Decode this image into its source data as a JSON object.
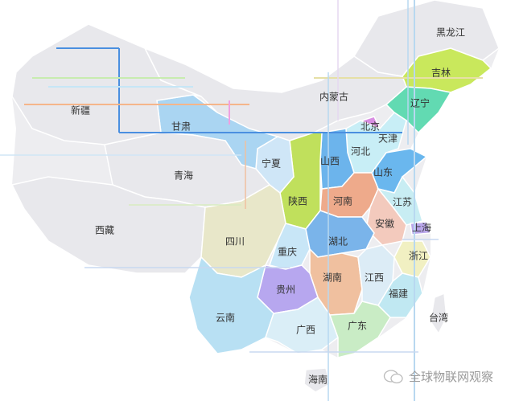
{
  "provinces": [
    {
      "name": "黑龙江",
      "color": "#e8e8ec"
    },
    {
      "name": "吉林",
      "color": "#c9e85c"
    },
    {
      "name": "辽宁",
      "color": "#62dab2"
    },
    {
      "name": "内蒙古",
      "color": "#e8e8ec"
    },
    {
      "name": "北京",
      "color": "#d88ee2"
    },
    {
      "name": "天津",
      "color": "#3a8ee6"
    },
    {
      "name": "河北",
      "color": "#c8eef6"
    },
    {
      "name": "山西",
      "color": "#6cb4ec"
    },
    {
      "name": "山东",
      "color": "#6ab7ee"
    },
    {
      "name": "河南",
      "color": "#eeaa8b"
    },
    {
      "name": "江苏",
      "color": "#c8edf3"
    },
    {
      "name": "安徽",
      "color": "#f3cabd"
    },
    {
      "name": "上海",
      "color": "#b9a6ea"
    },
    {
      "name": "陕西",
      "color": "#c0e05c"
    },
    {
      "name": "宁夏",
      "color": "#cfe6f7"
    },
    {
      "name": "甘肃",
      "color": "#aad5f2"
    },
    {
      "name": "青海",
      "color": "#e8e8ec"
    },
    {
      "name": "新疆",
      "color": "#e8e8ec"
    },
    {
      "name": "西藏",
      "color": "#e8e8ec"
    },
    {
      "name": "四川",
      "color": "#e8e7c9"
    },
    {
      "name": "重庆",
      "color": "#c8e6f7"
    },
    {
      "name": "湖北",
      "color": "#7ab4ea"
    },
    {
      "name": "湖南",
      "color": "#f0c09f"
    },
    {
      "name": "江西",
      "color": "#dcecf6"
    },
    {
      "name": "浙江",
      "color": "#f1f0c2"
    },
    {
      "name": "福建",
      "color": "#c0e8f2"
    },
    {
      "name": "贵州",
      "color": "#b7a7ef"
    },
    {
      "name": "云南",
      "color": "#b8e0f3"
    },
    {
      "name": "广西",
      "color": "#daeef7"
    },
    {
      "name": "广东",
      "color": "#c9ecc5"
    },
    {
      "name": "台湾",
      "color": "#e8e8ec"
    },
    {
      "name": "海南",
      "color": "#e8e8ec"
    }
  ],
  "watermark": {
    "icon": "wechat-icon",
    "text": "全球物联网观察"
  }
}
